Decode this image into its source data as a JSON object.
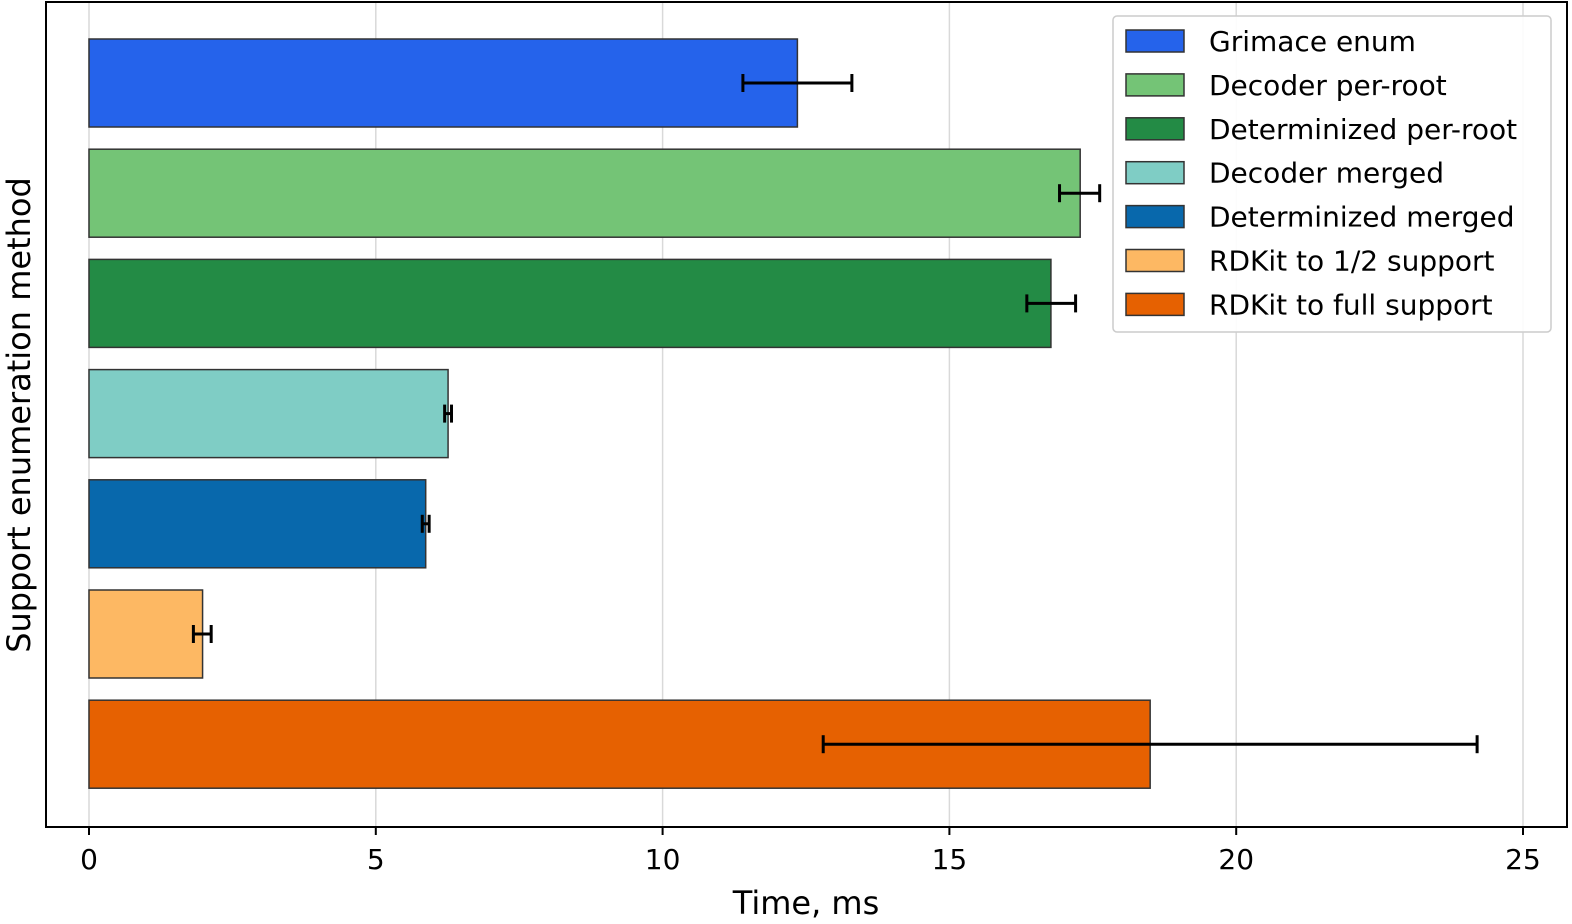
{
  "chart_data": {
    "type": "bar",
    "orientation": "horizontal",
    "xlabel": "Time, ms",
    "ylabel": "Support enumeration method",
    "xlim": [
      0,
      25.8
    ],
    "xticks": [
      0,
      5,
      10,
      15,
      20,
      25
    ],
    "grid": "vertical",
    "legend_position": "top-right",
    "series": [
      {
        "name": "Grimace enum",
        "value": 12.35,
        "err_low": 11.4,
        "err_high": 13.3,
        "color": "#2563eb"
      },
      {
        "name": "Decoder per-root",
        "value": 17.28,
        "err_low": 16.92,
        "err_high": 17.62,
        "color": "#74c476"
      },
      {
        "name": "Determinized per-root",
        "value": 16.77,
        "err_low": 16.35,
        "err_high": 17.2,
        "color": "#238b45"
      },
      {
        "name": "Decoder merged",
        "value": 6.26,
        "err_low": 6.2,
        "err_high": 6.32,
        "color": "#7fcdc5"
      },
      {
        "name": "Determinized merged",
        "value": 5.87,
        "err_low": 5.81,
        "err_high": 5.93,
        "color": "#0868ac"
      },
      {
        "name": "RDKit to 1/2 support",
        "value": 1.98,
        "err_low": 1.82,
        "err_high": 2.13,
        "color": "#fdb863"
      },
      {
        "name": "RDKit to full support",
        "value": 18.5,
        "err_low": 12.8,
        "err_high": 24.2,
        "color": "#e66101"
      }
    ]
  }
}
